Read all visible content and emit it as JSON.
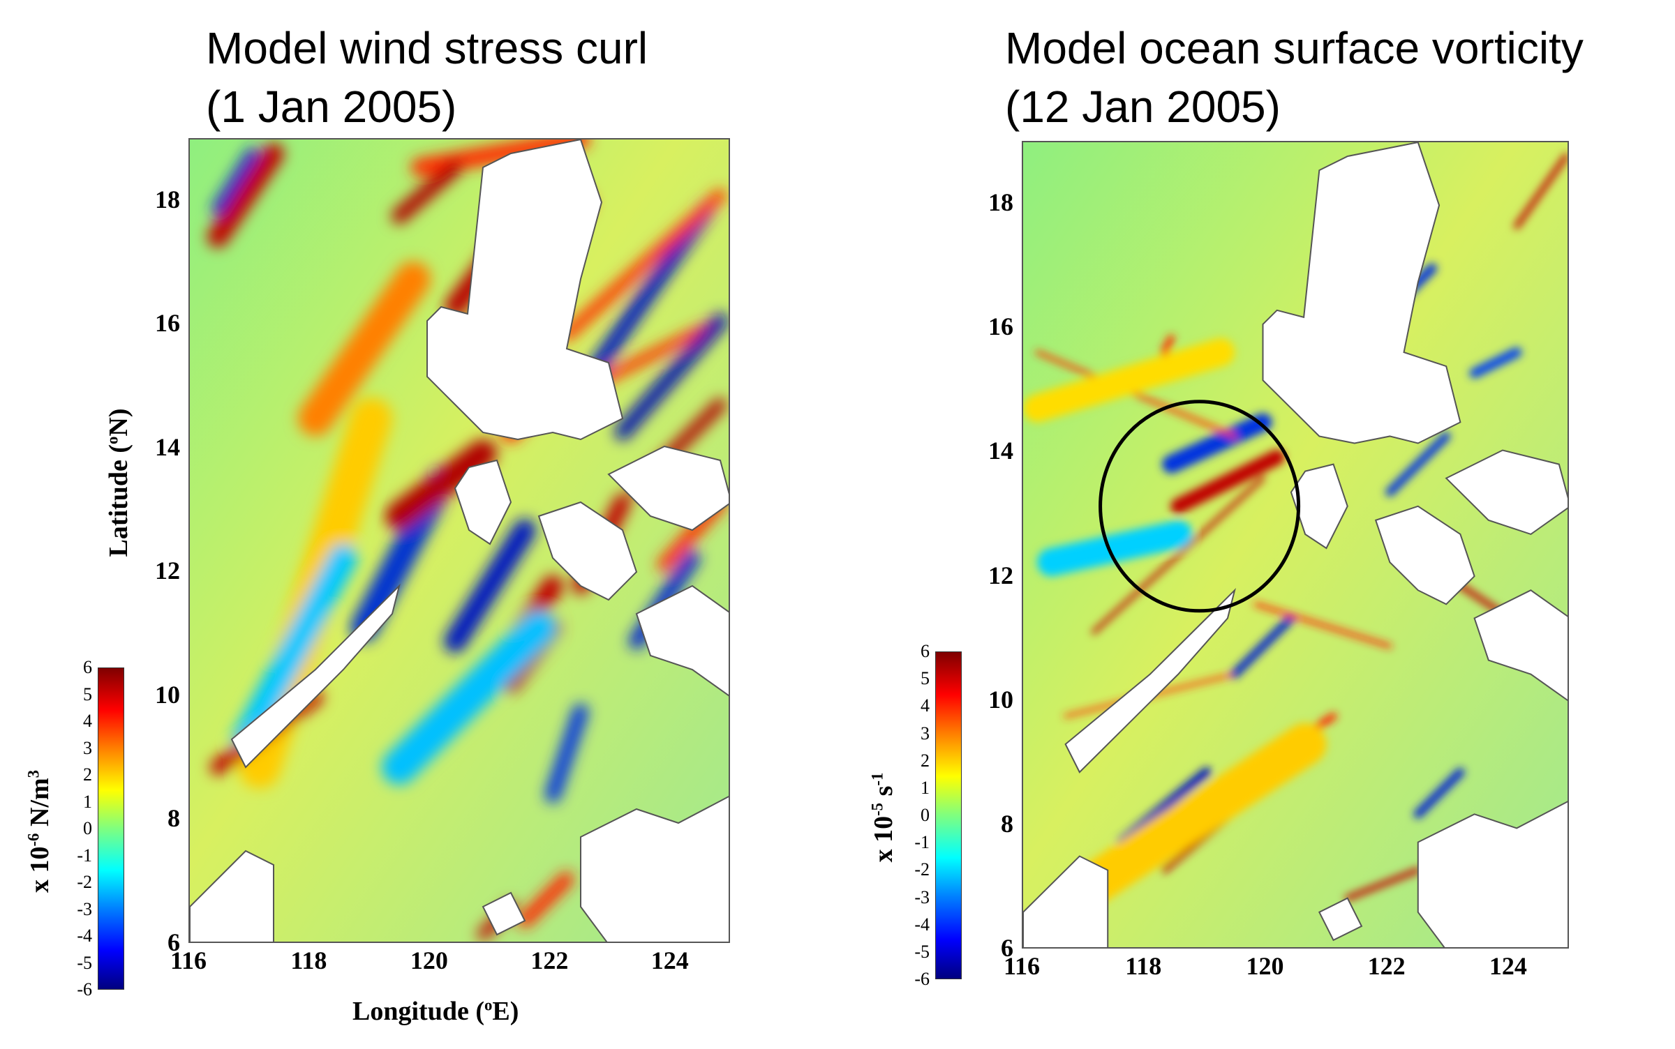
{
  "chart_data": [
    {
      "type": "heatmap",
      "title_line1": "Model wind stress curl",
      "title_line2": " (1 Jan 2005)",
      "xlabel": "Longitude (°E)",
      "xlabel_pre": "Longitude (",
      "xlabel_sup": "o",
      "xlabel_post": "E)",
      "ylabel": "Latitude (°N)",
      "ylabel_pre": "Latitude (",
      "ylabel_sup": "o",
      "ylabel_post": "N)",
      "x_ticks": [
        "116",
        "118",
        "120",
        "122",
        "124"
      ],
      "y_ticks": [
        "6",
        "8",
        "10",
        "12",
        "14",
        "16",
        "18"
      ],
      "xlim": [
        116,
        125
      ],
      "ylim": [
        6,
        19
      ],
      "colorbar": {
        "label_pre": "x 10",
        "label_exp": "-6",
        "label_post": " N/m",
        "label_unit_sup": "3",
        "ticks": [
          "6",
          "5",
          "4",
          "3",
          "2",
          "1",
          "0",
          "-1",
          "-2",
          "-3",
          "-4",
          "-5",
          "-6"
        ],
        "range": [
          -6,
          6
        ],
        "colormap": "jet"
      }
    },
    {
      "type": "heatmap",
      "title_line1": "Model ocean surface vorticity",
      "title_line2": "(12 Jan 2005)",
      "x_ticks": [
        "116",
        "118",
        "120",
        "122",
        "124"
      ],
      "y_ticks": [
        "6",
        "8",
        "10",
        "12",
        "14",
        "16",
        "18"
      ],
      "xlim": [
        116,
        125
      ],
      "ylim": [
        6,
        19
      ],
      "annotation": "black circle around eddy near 118.8°E, 13.2°N",
      "colorbar": {
        "label_pre": "x 10",
        "label_exp": "-5",
        "label_post": " s",
        "label_unit_sup": "-1",
        "ticks": [
          "6",
          "5",
          "4",
          "3",
          "2",
          "1",
          "0",
          "-1",
          "-2",
          "-3",
          "-4",
          "-5",
          "-6"
        ],
        "range": [
          -6,
          6
        ],
        "colormap": "jet"
      }
    }
  ],
  "colors": {
    "field": "#7fdf8f",
    "land": "#ffffff",
    "positive": "#b40000",
    "negative": "#0010c0"
  }
}
